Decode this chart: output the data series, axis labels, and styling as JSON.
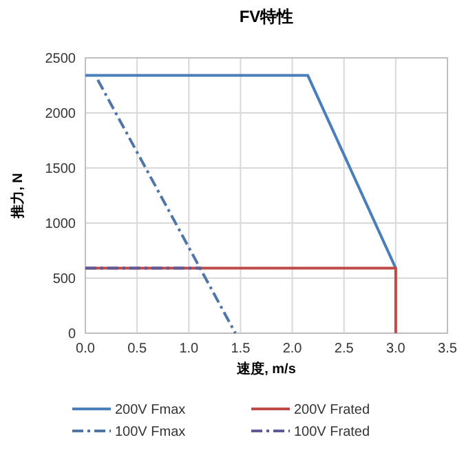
{
  "chart_data": {
    "type": "line",
    "title": "FV特性",
    "xlabel": "速度, m/s",
    "ylabel": "推力, N",
    "xlim": [
      0,
      3.5
    ],
    "xticks": [
      {
        "value": 0,
        "label": "0.0"
      },
      {
        "value": 0.5,
        "label": "0.5"
      },
      {
        "value": 1,
        "label": "1.0"
      },
      {
        "value": 1.5,
        "label": "1.5"
      },
      {
        "value": 2,
        "label": "2.0"
      },
      {
        "value": 2.5,
        "label": "2.5"
      },
      {
        "value": 3,
        "label": "3.0"
      },
      {
        "value": 3.5,
        "label": "3.5"
      }
    ],
    "ylim": [
      0,
      2500
    ],
    "yticks": [
      0,
      500,
      1000,
      1500,
      2000,
      2500
    ],
    "grid": true,
    "legend": "bottom",
    "series": [
      {
        "name": "200V Fmax",
        "color": "#4a7ebb",
        "line_style": "solid",
        "x": [
          0,
          2.15,
          3.0
        ],
        "values": [
          2340,
          2340,
          590
        ]
      },
      {
        "name": "200V Frated",
        "color": "#be4b48",
        "line_style": "solid",
        "x": [
          0,
          3.0,
          3.0
        ],
        "values": [
          590,
          590,
          0
        ]
      },
      {
        "name": "100V Fmax",
        "color": "#4f76a8",
        "line_style": "dashdot",
        "x": [
          0.12,
          1.45
        ],
        "values": [
          2300,
          0
        ]
      },
      {
        "name": "100V Frated",
        "color": "#5e5a98",
        "line_style": "dashdot",
        "x": [
          0,
          1.12
        ],
        "values": [
          590,
          590
        ]
      }
    ]
  }
}
